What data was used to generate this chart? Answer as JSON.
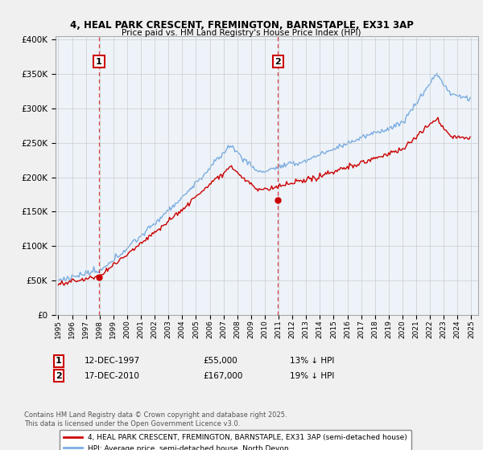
{
  "title1": "4, HEAL PARK CRESCENT, FREMINGTON, BARNSTAPLE, EX31 3AP",
  "title2": "Price paid vs. HM Land Registry's House Price Index (HPI)",
  "legend_line1": "4, HEAL PARK CRESCENT, FREMINGTON, BARNSTAPLE, EX31 3AP (semi-detached house)",
  "legend_line2": "HPI: Average price, semi-detached house, North Devon",
  "footnote": "Contains HM Land Registry data © Crown copyright and database right 2025.\nThis data is licensed under the Open Government Licence v3.0.",
  "purchase1": {
    "label": "1",
    "date": "12-DEC-1997",
    "price": 55000,
    "year": 1997.95,
    "hpi_pct": "13% ↓ HPI"
  },
  "purchase2": {
    "label": "2",
    "date": "17-DEC-2010",
    "price": 167000,
    "year": 2010.95,
    "hpi_pct": "19% ↓ HPI"
  },
  "ylim": [
    0,
    400000
  ],
  "xlim": [
    1994.8,
    2025.5
  ],
  "red_color": "#cc0000",
  "blue_color": "#7aace0",
  "blue_fill": "#dce8f5",
  "background": "#f0f0f0",
  "plot_bg": "#ffffff",
  "grid_color": "#cccccc"
}
